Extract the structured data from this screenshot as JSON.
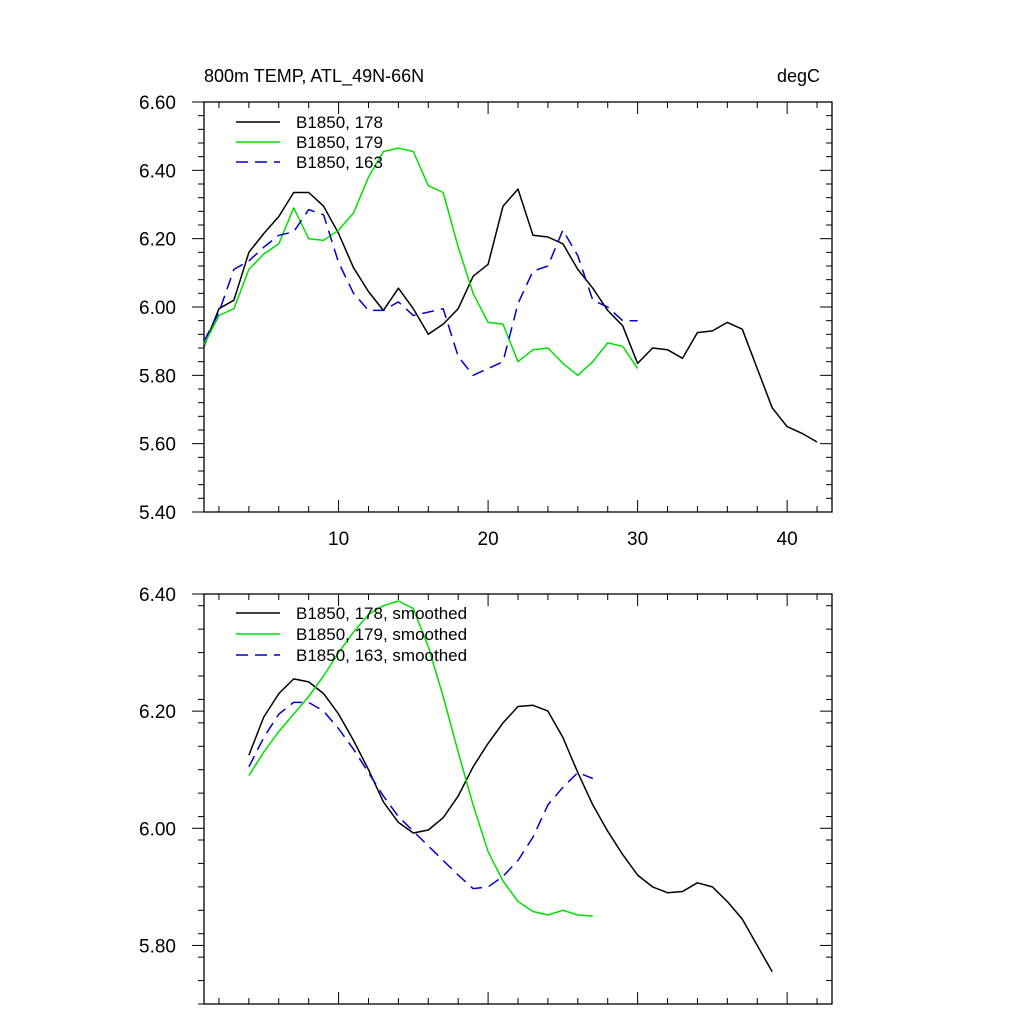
{
  "chart_data": [
    {
      "type": "line",
      "title_left": "800m TEMP, ATL_49N-66N",
      "title_right": "degC",
      "xlabel": "",
      "ylabel": "",
      "xlim": [
        1,
        43
      ],
      "ylim": [
        5.4,
        6.6
      ],
      "x_ticks": [
        10,
        20,
        30,
        40
      ],
      "x_tick_labels": [
        "10",
        "20",
        "30",
        "40"
      ],
      "y_ticks": [
        5.4,
        5.6,
        5.8,
        6.0,
        6.2,
        6.4,
        6.6
      ],
      "y_tick_labels": [
        "5.40",
        "5.60",
        "5.80",
        "6.00",
        "6.20",
        "6.40",
        "6.60"
      ],
      "grid": false,
      "legend_position": "top-left",
      "series": [
        {
          "name": "B1850, 178",
          "color": "#000000",
          "dash": "solid",
          "x": [
            1,
            2,
            3,
            4,
            5,
            6,
            7,
            8,
            9,
            10,
            11,
            12,
            13,
            14,
            15,
            16,
            17,
            18,
            19,
            20,
            21,
            22,
            23,
            24,
            25,
            26,
            27,
            28,
            29,
            30,
            31,
            32,
            33,
            34,
            35,
            36,
            37,
            38,
            39,
            40,
            41,
            42
          ],
          "y": [
            5.885,
            5.995,
            6.02,
            6.16,
            6.215,
            6.265,
            6.335,
            6.335,
            6.295,
            6.215,
            6.115,
            6.045,
            5.99,
            6.055,
            5.995,
            5.92,
            5.95,
            5.995,
            6.09,
            6.125,
            6.295,
            6.345,
            6.21,
            6.205,
            6.185,
            6.11,
            6.055,
            5.99,
            5.945,
            5.835,
            5.88,
            5.875,
            5.85,
            5.925,
            5.93,
            5.955,
            5.935,
            5.82,
            5.705,
            5.65,
            5.63,
            5.605
          ]
        },
        {
          "name": "B1850, 179",
          "color": "#00e000",
          "dash": "solid",
          "x": [
            1,
            2,
            3,
            4,
            5,
            6,
            7,
            8,
            9,
            10,
            11,
            12,
            13,
            14,
            15,
            16,
            17,
            18,
            19,
            20,
            21,
            22,
            23,
            24,
            25,
            26,
            27,
            28,
            29,
            30
          ],
          "y": [
            5.89,
            5.975,
            5.995,
            6.11,
            6.155,
            6.185,
            6.29,
            6.2,
            6.195,
            6.225,
            6.275,
            6.38,
            6.455,
            6.465,
            6.455,
            6.355,
            6.335,
            6.175,
            6.04,
            5.955,
            5.95,
            5.84,
            5.875,
            5.88,
            5.835,
            5.8,
            5.84,
            5.895,
            5.885,
            5.82
          ]
        },
        {
          "name": "B1850, 163",
          "color": "#0000cc",
          "dash": "dashed",
          "x": [
            1,
            2,
            3,
            4,
            5,
            6,
            7,
            8,
            9,
            10,
            11,
            12,
            13,
            14,
            15,
            16,
            17,
            18,
            19,
            20,
            21,
            22,
            23,
            24,
            25,
            26,
            27,
            28,
            29,
            30
          ],
          "y": [
            5.9,
            5.985,
            6.11,
            6.135,
            6.175,
            6.21,
            6.22,
            6.285,
            6.27,
            6.13,
            6.04,
            5.99,
            5.99,
            6.015,
            5.975,
            5.985,
            5.995,
            5.855,
            5.8,
            5.82,
            5.84,
            6.01,
            6.105,
            6.12,
            6.225,
            6.15,
            6.02,
            6.0,
            5.96,
            5.96
          ]
        }
      ]
    },
    {
      "type": "line",
      "title_left": "",
      "title_right": "",
      "xlabel": "",
      "ylabel": "",
      "xlim": [
        1,
        43
      ],
      "ylim": [
        5.7,
        6.4
      ],
      "x_ticks": [
        10,
        20,
        30,
        40
      ],
      "x_tick_labels": [],
      "y_ticks": [
        5.8,
        6.0,
        6.2,
        6.4
      ],
      "y_tick_labels": [
        "5.80",
        "6.00",
        "6.20",
        "6.40"
      ],
      "grid": false,
      "legend_position": "top-left",
      "series": [
        {
          "name": "B1850, 178, smoothed",
          "color": "#000000",
          "dash": "solid",
          "x": [
            4,
            5,
            6,
            7,
            8,
            9,
            10,
            11,
            12,
            13,
            14,
            15,
            16,
            17,
            18,
            19,
            20,
            21,
            22,
            23,
            24,
            25,
            26,
            27,
            28,
            29,
            30,
            31,
            32,
            33,
            34,
            35,
            36,
            37,
            38,
            39
          ],
          "y": [
            6.125,
            6.19,
            6.23,
            6.255,
            6.25,
            6.23,
            6.195,
            6.15,
            6.1,
            6.045,
            6.01,
            5.992,
            5.997,
            6.018,
            6.055,
            6.105,
            6.145,
            6.18,
            6.208,
            6.21,
            6.2,
            6.155,
            6.095,
            6.04,
            5.995,
            5.955,
            5.92,
            5.9,
            5.89,
            5.892,
            5.907,
            5.9,
            5.875,
            5.845,
            5.8,
            5.755
          ]
        },
        {
          "name": "B1850, 179, smoothed",
          "color": "#00e000",
          "dash": "solid",
          "x": [
            4,
            5,
            6,
            7,
            8,
            9,
            10,
            11,
            12,
            13,
            14,
            15,
            16,
            17,
            18,
            19,
            20,
            21,
            22,
            23,
            24,
            25,
            26,
            27
          ],
          "y": [
            6.09,
            6.13,
            6.165,
            6.195,
            6.225,
            6.26,
            6.3,
            6.335,
            6.365,
            6.38,
            6.388,
            6.375,
            6.31,
            6.225,
            6.13,
            6.04,
            5.96,
            5.91,
            5.875,
            5.858,
            5.852,
            5.86,
            5.852,
            5.85
          ]
        },
        {
          "name": "B1850, 163, smoothed",
          "color": "#0000cc",
          "dash": "dashed",
          "x": [
            4,
            5,
            6,
            7,
            8,
            9,
            10,
            11,
            12,
            13,
            14,
            15,
            16,
            17,
            18,
            19,
            20,
            21,
            22,
            23,
            24,
            25,
            26,
            27
          ],
          "y": [
            6.105,
            6.155,
            6.195,
            6.215,
            6.215,
            6.2,
            6.17,
            6.135,
            6.095,
            6.055,
            6.02,
            5.995,
            5.97,
            5.945,
            5.92,
            5.897,
            5.9,
            5.918,
            5.945,
            5.985,
            6.04,
            6.07,
            6.095,
            6.085
          ]
        }
      ]
    }
  ]
}
